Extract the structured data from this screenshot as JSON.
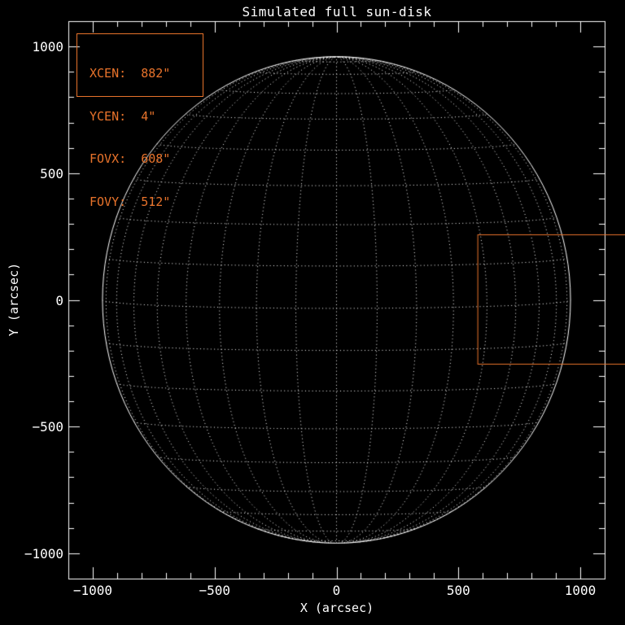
{
  "window": {
    "background": "#000000"
  },
  "plot": {
    "title": "Simulated full sun-disk",
    "x_axis": {
      "label": "X (arcsec)"
    },
    "y_axis": {
      "label": "Y (arcsec)"
    }
  },
  "fov_info": {
    "lines": [
      "XCEN:  882\"",
      "YCEN:  4\"",
      "FOVX:  608\"",
      "FOVY:  512\""
    ]
  },
  "chart_data": {
    "type": "line",
    "title": "Simulated full sun-disk",
    "xlabel": "X (arcsec)",
    "ylabel": "Y (arcsec)",
    "xlim": [
      -1100,
      1100
    ],
    "ylim": [
      -1100,
      1100
    ],
    "x_major_ticks": [
      -1000,
      -500,
      0,
      500,
      1000
    ],
    "y_major_ticks": [
      -1000,
      -500,
      0,
      500,
      1000
    ],
    "x_tick_labels": [
      "-1000",
      "-500",
      "0",
      "500",
      "1000"
    ],
    "y_tick_labels": [
      "-1000",
      "-500",
      "0",
      "500",
      "1000"
    ],
    "minor_tick_step": 100,
    "grid": false,
    "legend_position": "top-left",
    "background_color": "#000000",
    "axis_color": "#ffffff",
    "annotation_color": "#e8732b",
    "sun_disk": {
      "center_arcsec": [
        0,
        0
      ],
      "radius_arcsec": 960,
      "limb_style": "solid",
      "heliographic_grid": {
        "style": "dotted",
        "lat_step_deg": 10,
        "lon_step_deg": 10,
        "b0_deg": 2,
        "color": "#ffffff"
      }
    },
    "fov_box": {
      "xcen_arcsec": 882,
      "ycen_arcsec": 4,
      "fovx_arcsec": 608,
      "fovy_arcsec": 512,
      "color": "#e8732b"
    },
    "annotation_box": {
      "lines": [
        "XCEN:  882\"",
        "YCEN:  4\"",
        "FOVX:  608\"",
        "FOVY:  512\""
      ],
      "color": "#e8732b"
    }
  }
}
